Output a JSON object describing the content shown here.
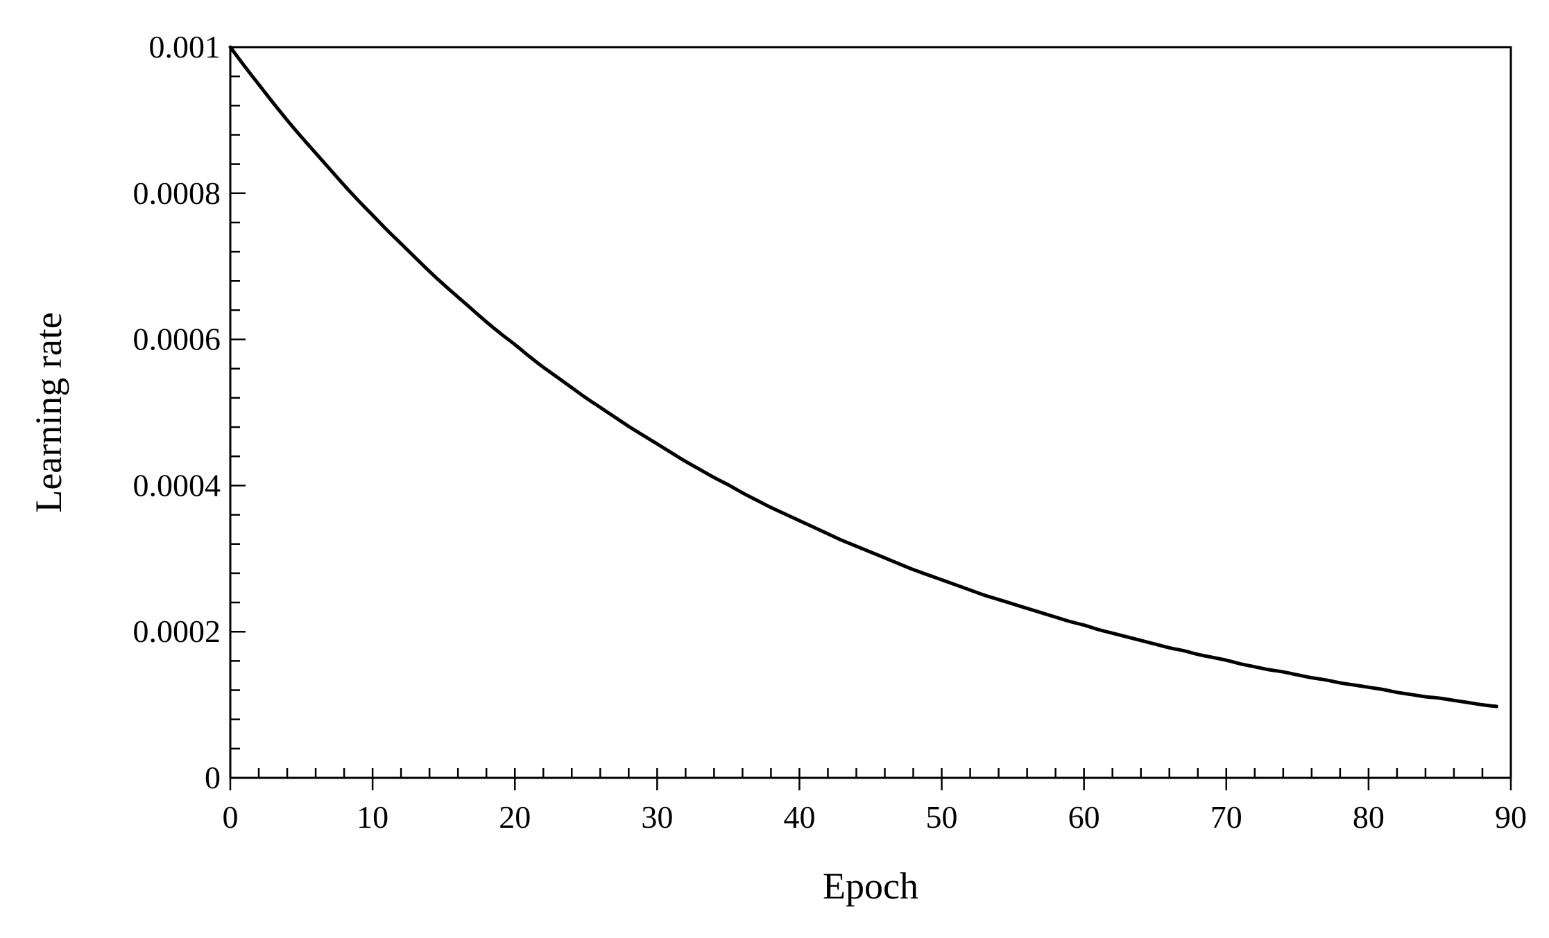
{
  "chart_data": {
    "type": "line",
    "title": "",
    "xlabel": "Epoch",
    "ylabel": "Learning rate",
    "xlim": [
      0,
      90
    ],
    "ylim": [
      0,
      0.001
    ],
    "x_ticks": [
      0,
      10,
      20,
      30,
      40,
      50,
      60,
      70,
      80,
      90
    ],
    "x_tick_labels": [
      "0",
      "10",
      "20",
      "30",
      "40",
      "50",
      "60",
      "70",
      "80",
      "90"
    ],
    "x_minor_step": 2,
    "y_ticks": [
      0,
      0.0002,
      0.0004,
      0.0006,
      0.0008,
      0.001
    ],
    "y_tick_labels": [
      "0",
      "0.0002",
      "0.0004",
      "0.0006",
      "0.0008",
      "0.001"
    ],
    "y_minor_step": 4e-05,
    "grid": false,
    "legend": "none",
    "line_color": "#000000",
    "series": [
      {
        "x": [
          0,
          1,
          2,
          3,
          4,
          5,
          6,
          7,
          8,
          9,
          10,
          11,
          12,
          13,
          14,
          15,
          16,
          17,
          18,
          19,
          20,
          21,
          22,
          23,
          24,
          25,
          26,
          27,
          28,
          29,
          30,
          31,
          32,
          33,
          34,
          35,
          36,
          37,
          38,
          39,
          40,
          41,
          42,
          43,
          44,
          45,
          46,
          47,
          48,
          49,
          50,
          51,
          52,
          53,
          54,
          55,
          56,
          57,
          58,
          59,
          60,
          61,
          62,
          63,
          64,
          65,
          66,
          67,
          68,
          69,
          70,
          71,
          72,
          73,
          74,
          75,
          76,
          77,
          78,
          79,
          80,
          81,
          82,
          83,
          84,
          85,
          86,
          87,
          88,
          89
        ],
        "values": [
          0.001,
          0.000974,
          0.000949,
          0.000924,
          0.0009,
          0.000877,
          0.000855,
          0.000833,
          0.000811,
          0.00079,
          0.00077,
          0.00075,
          0.000731,
          0.000712,
          0.000693,
          0.000675,
          0.000658,
          0.000641,
          0.000624,
          0.000608,
          0.000593,
          0.000577,
          0.000562,
          0.000548,
          0.000534,
          0.00052,
          0.000507,
          0.000494,
          0.000481,
          0.000469,
          0.000457,
          0.000445,
          0.000433,
          0.000422,
          0.000411,
          0.000401,
          0.00039,
          0.00038,
          0.00037,
          0.000361,
          0.000352,
          0.000343,
          0.000334,
          0.000325,
          0.000317,
          0.000309,
          0.000301,
          0.000293,
          0.000285,
          0.000278,
          0.000271,
          0.000264,
          0.000257,
          0.00025,
          0.000244,
          0.000238,
          0.000232,
          0.000226,
          0.00022,
          0.000214,
          0.000209,
          0.000203,
          0.000198,
          0.000193,
          0.000188,
          0.000183,
          0.000178,
          0.000174,
          0.000169,
          0.000165,
          0.000161,
          0.000156,
          0.000152,
          0.000148,
          0.000145,
          0.000141,
          0.000137,
          0.000134,
          0.00013,
          0.000127,
          0.000124,
          0.000121,
          0.000117,
          0.000114,
          0.000111,
          0.000109,
          0.000106,
          0.000103,
          0.0001,
          9.77e-05
        ]
      }
    ]
  }
}
